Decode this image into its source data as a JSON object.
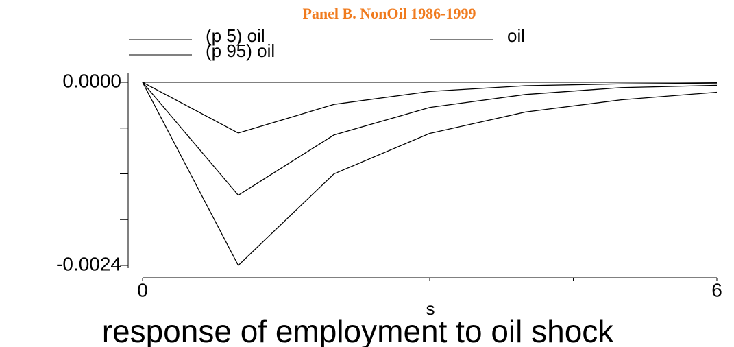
{
  "chart_data": {
    "type": "line",
    "title": "Panel B. NonOil 1986-1999",
    "x_label": "s",
    "caption": "response of employment to oil shock",
    "x": [
      0,
      1,
      2,
      3,
      4,
      5,
      6
    ],
    "series": [
      {
        "name": "(p 5) oil",
        "color": "#000000",
        "values": [
          0,
          -0.000665,
          -0.00029,
          -0.00012,
          -4.5e-05,
          -2e-05,
          -1e-05
        ]
      },
      {
        "name": "oil",
        "color": "#000000",
        "values": [
          0,
          -0.00148,
          -0.00069,
          -0.00033,
          -0.00016,
          -7e-05,
          -4e-05
        ]
      },
      {
        "name": "(p 95) oil",
        "color": "#000000",
        "values": [
          0,
          -0.0024,
          -0.0012,
          -0.00067,
          -0.00039,
          -0.00023,
          -0.00013
        ]
      }
    ],
    "xlim": [
      0,
      6
    ],
    "xticks": [
      0,
      6
    ],
    "xminorticks": [
      1.5,
      3,
      4.5
    ],
    "ylim": [
      -0.0024,
      0
    ],
    "yticks": [
      {
        "value": 0,
        "label": "0.0000"
      },
      {
        "value": -0.0024,
        "label": "-0.0024"
      }
    ],
    "yminorticks": [
      -0.0006,
      -0.0012,
      -0.0018
    ],
    "zero_line": true
  }
}
